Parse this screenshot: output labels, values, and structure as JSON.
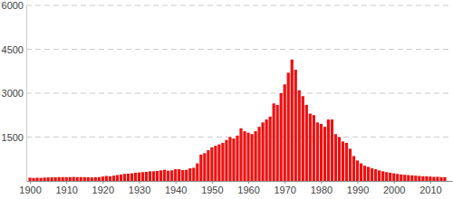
{
  "chart_data": {
    "type": "bar",
    "x": [
      1900,
      1901,
      1902,
      1903,
      1904,
      1905,
      1906,
      1907,
      1908,
      1909,
      1910,
      1911,
      1912,
      1913,
      1914,
      1915,
      1916,
      1917,
      1918,
      1919,
      1920,
      1921,
      1922,
      1923,
      1924,
      1925,
      1926,
      1927,
      1928,
      1929,
      1930,
      1931,
      1932,
      1933,
      1934,
      1935,
      1936,
      1937,
      1938,
      1939,
      1940,
      1941,
      1942,
      1943,
      1944,
      1945,
      1946,
      1947,
      1948,
      1949,
      1950,
      1951,
      1952,
      1953,
      1954,
      1955,
      1956,
      1957,
      1958,
      1959,
      1960,
      1961,
      1962,
      1963,
      1964,
      1965,
      1966,
      1967,
      1968,
      1969,
      1970,
      1971,
      1972,
      1973,
      1974,
      1975,
      1976,
      1977,
      1978,
      1979,
      1980,
      1981,
      1982,
      1983,
      1984,
      1985,
      1986,
      1987,
      1988,
      1989,
      1990,
      1991,
      1992,
      1993,
      1994,
      1995,
      1996,
      1997,
      1998,
      1999,
      2000,
      2001,
      2002,
      2003,
      2004,
      2005,
      2006,
      2007,
      2008,
      2009,
      2010,
      2011,
      2012,
      2013,
      2014
    ],
    "values": [
      110,
      100,
      110,
      105,
      115,
      120,
      120,
      125,
      130,
      130,
      130,
      130,
      135,
      130,
      130,
      130,
      125,
      120,
      125,
      130,
      150,
      170,
      160,
      180,
      200,
      220,
      240,
      250,
      260,
      280,
      290,
      300,
      310,
      330,
      330,
      340,
      360,
      380,
      350,
      360,
      400,
      400,
      370,
      380,
      430,
      450,
      600,
      900,
      950,
      1050,
      1150,
      1200,
      1250,
      1300,
      1400,
      1500,
      1450,
      1550,
      1800,
      1700,
      1650,
      1600,
      1700,
      1850,
      2000,
      2100,
      2200,
      2650,
      2600,
      3000,
      3300,
      3700,
      4150,
      3800,
      3100,
      2900,
      2600,
      2300,
      2250,
      2000,
      1950,
      1850,
      2100,
      2100,
      1600,
      1500,
      1350,
      1300,
      1100,
      850,
      700,
      600,
      520,
      480,
      430,
      400,
      360,
      330,
      300,
      280,
      260,
      240,
      220,
      210,
      200,
      190,
      180,
      170,
      160,
      160,
      150,
      140,
      140,
      130,
      130
    ],
    "color": "#ee1111",
    "xlim": [
      1899,
      2016
    ],
    "xticks": [
      1900,
      1910,
      1920,
      1930,
      1940,
      1950,
      1960,
      1970,
      1980,
      1990,
      2000,
      2010
    ],
    "ylim": [
      0,
      6000
    ],
    "yticks": [
      1500,
      3000,
      4500,
      6000
    ],
    "grid": true
  }
}
